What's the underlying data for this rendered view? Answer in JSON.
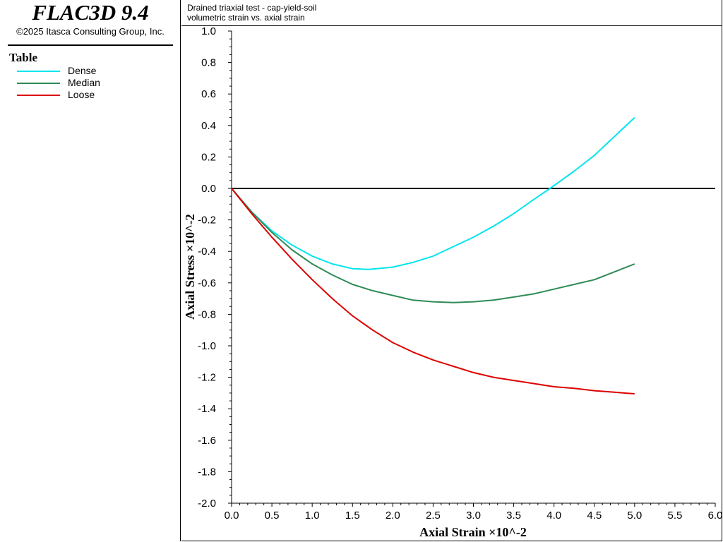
{
  "app": {
    "title": "FLAC3D 9.4",
    "copyright": "©2025 Itasca Consulting Group, Inc."
  },
  "legend": {
    "title": "Table",
    "items": [
      {
        "label": "Dense",
        "color": "#00e5ee"
      },
      {
        "label": "Median",
        "color": "#2e8b57"
      },
      {
        "label": "Loose",
        "color": "#dd0000"
      }
    ]
  },
  "chart_header": {
    "line1": "Drained triaxial test - cap-yield-soil",
    "line2": "volumetric strain vs. axial strain"
  },
  "chart_data": {
    "type": "line",
    "xlabel": "Axial Strain ×10^-2",
    "ylabel": "Axial Stress ×10^-2",
    "xlim": [
      0,
      6.0
    ],
    "ylim": [
      -2.0,
      1.0
    ],
    "x_ticks": [
      "0.0",
      "0.5",
      "1.0",
      "1.5",
      "2.0",
      "2.5",
      "3.0",
      "3.5",
      "4.0",
      "4.5",
      "5.0",
      "5.5",
      "6.0"
    ],
    "y_ticks": [
      "1.0",
      "0.8",
      "0.6",
      "0.4",
      "0.2",
      "0.0",
      "-0.2",
      "-0.4",
      "-0.6",
      "-0.8",
      "-1.0",
      "-1.2",
      "-1.4",
      "-1.6",
      "-1.8",
      "-2.0"
    ],
    "zero_line": true,
    "series": [
      {
        "name": "Dense",
        "color": "#00e5ee",
        "x": [
          0,
          0.25,
          0.5,
          0.75,
          1.0,
          1.25,
          1.5,
          1.7,
          2.0,
          2.25,
          2.5,
          2.75,
          3.0,
          3.25,
          3.5,
          3.75,
          3.95,
          4.25,
          4.5,
          4.75,
          5.0
        ],
        "y": [
          0,
          -0.15,
          -0.27,
          -0.36,
          -0.43,
          -0.48,
          -0.51,
          -0.515,
          -0.5,
          -0.47,
          -0.43,
          -0.37,
          -0.31,
          -0.24,
          -0.16,
          -0.07,
          0.0,
          0.11,
          0.21,
          0.33,
          0.45
        ]
      },
      {
        "name": "Median",
        "color": "#2e8b57",
        "x": [
          0,
          0.25,
          0.5,
          0.75,
          1.0,
          1.25,
          1.5,
          1.75,
          2.0,
          2.25,
          2.5,
          2.75,
          3.0,
          3.25,
          3.5,
          3.75,
          4.0,
          4.25,
          4.5,
          4.75,
          5.0
        ],
        "y": [
          0,
          -0.15,
          -0.28,
          -0.39,
          -0.48,
          -0.55,
          -0.61,
          -0.65,
          -0.68,
          -0.71,
          -0.72,
          -0.725,
          -0.72,
          -0.71,
          -0.69,
          -0.67,
          -0.64,
          -0.61,
          -0.58,
          -0.53,
          -0.48
        ]
      },
      {
        "name": "Loose",
        "color": "#dd0000",
        "x": [
          0,
          0.25,
          0.5,
          0.75,
          1.0,
          1.25,
          1.5,
          1.75,
          2.0,
          2.25,
          2.5,
          2.75,
          3.0,
          3.25,
          3.5,
          3.75,
          4.0,
          4.25,
          4.5,
          4.75,
          5.0
        ],
        "y": [
          0,
          -0.16,
          -0.31,
          -0.45,
          -0.58,
          -0.7,
          -0.81,
          -0.9,
          -0.98,
          -1.04,
          -1.09,
          -1.13,
          -1.17,
          -1.2,
          -1.22,
          -1.24,
          -1.26,
          -1.27,
          -1.285,
          -1.295,
          -1.305
        ]
      }
    ]
  }
}
